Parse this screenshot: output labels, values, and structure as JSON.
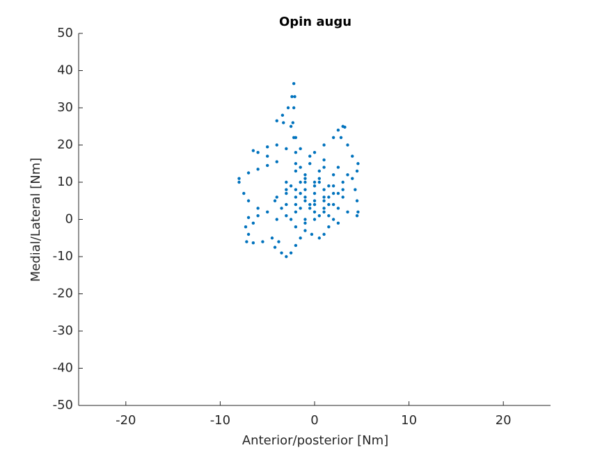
{
  "chart_data": {
    "type": "scatter",
    "title": "Opin augu",
    "xlabel": "Anterior/posterior [Nm]",
    "ylabel": "Medial/Lateral [Nm]",
    "color": "#0072BD",
    "xlim": [
      -25,
      25
    ],
    "xticks": [
      -20,
      -10,
      0,
      10,
      20
    ],
    "ylim": [
      -50,
      50
    ],
    "yticks": [
      -50,
      -40,
      -30,
      -20,
      -10,
      0,
      10,
      20,
      30,
      40,
      50
    ],
    "x": [
      -1,
      -1.5,
      -2,
      -2.2,
      -2.3,
      -2.2,
      -2.1,
      -2.2,
      -2.4,
      -2.8,
      -3.4,
      -4,
      -3.3,
      -2.5,
      -2,
      -1.5,
      0,
      1,
      2,
      2.5,
      3,
      3.2,
      2.8,
      3.5,
      4,
      4.6,
      4.5,
      4,
      4.3,
      4.5,
      4.6,
      4.5,
      3.5,
      2.5,
      2,
      1.5,
      1,
      0.5,
      -0.3,
      -1,
      -1.5,
      -2,
      -2.5,
      -3,
      -3.5,
      -4.2,
      -3.8,
      -4.5,
      -5.5,
      -6.5,
      -7.2,
      -7,
      -7.3,
      -6.5,
      -7,
      -6,
      -5,
      -6,
      -7,
      -7.5,
      -8,
      -8,
      -7,
      -6,
      -5,
      -4,
      -5,
      -6,
      -6.5,
      -5,
      -4,
      -3,
      -2,
      -1,
      0,
      1,
      -0.5,
      -2,
      -3,
      -1.5,
      0.5,
      2,
      1,
      0,
      -1,
      -2,
      -3,
      -4,
      -3,
      -2,
      -0.5,
      1,
      2,
      3,
      2.5,
      1.5,
      0.5,
      -1,
      -2.5,
      -3.5,
      -4.2,
      -3,
      -1,
      0,
      1,
      0.5,
      -1,
      -2,
      -0.5,
      1,
      2,
      3,
      2,
      0,
      -1.5,
      -2.5,
      -1,
      0.5,
      -0.5,
      1,
      2.5,
      3.5,
      3,
      1.5,
      0,
      -1.5,
      -3,
      -4,
      -2,
      0,
      1.5,
      2.5,
      1,
      -1,
      -2,
      0,
      1.5
    ],
    "values": [
      10,
      14,
      18,
      22,
      26,
      30,
      33,
      36.5,
      33,
      30,
      28,
      26.5,
      26,
      25,
      22,
      19,
      18,
      20,
      22,
      24,
      25,
      24.8,
      22,
      20,
      17,
      15,
      13,
      11,
      8,
      5,
      2,
      1,
      2,
      3,
      0,
      -2,
      -4,
      -5,
      -4,
      -3,
      -5,
      -7,
      -9,
      -10,
      -9,
      -7.5,
      -6,
      -5,
      -6,
      -6.3,
      -6,
      -4,
      -2,
      -1,
      0.5,
      1,
      2,
      3,
      5,
      7,
      10,
      11,
      12.5,
      13.5,
      14.5,
      15.5,
      17,
      18,
      18.5,
      19.5,
      20,
      19,
      15,
      12,
      9,
      6,
      4,
      6,
      8,
      10,
      11,
      9,
      5,
      2,
      0,
      2,
      4,
      6,
      10,
      13,
      15,
      14,
      12,
      10,
      7,
      4,
      1,
      -1,
      0,
      3,
      5,
      7,
      8,
      7,
      8,
      10,
      6,
      4,
      3,
      2,
      4,
      6,
      7,
      5,
      7,
      9,
      11,
      13,
      17,
      16,
      14,
      12,
      8,
      6,
      4,
      3,
      1,
      0,
      -2,
      0,
      1,
      -1,
      3,
      5,
      8,
      10,
      9
    ]
  }
}
